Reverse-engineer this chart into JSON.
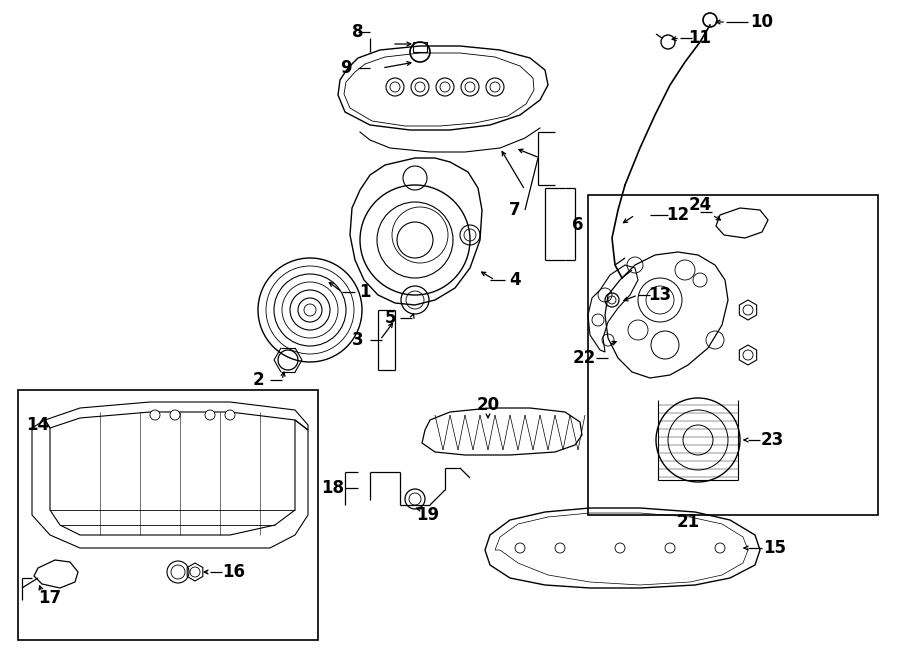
{
  "bg_color": "#ffffff",
  "line_color": "#000000",
  "fig_width": 9.0,
  "fig_height": 6.61,
  "dpi": 100,
  "lw": 0.9
}
